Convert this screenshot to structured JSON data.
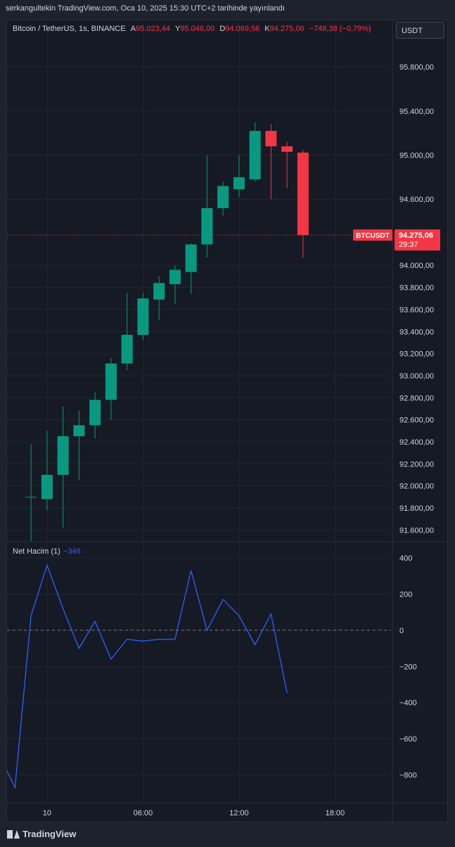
{
  "header": {
    "publish_line": "serkangultekin TradingView.com, Oca 10, 2025 15:30 UTC+2 tarihinde yayınlandı"
  },
  "legend": {
    "symbol": "Bitcoin / TetherUS, 1s, BINANCE",
    "open_label": "A",
    "open": "95.023,44",
    "high_label": "Y",
    "high": "95.046,00",
    "low_label": "D",
    "low": "94.069,56",
    "close_label": "K",
    "close": "94.275,06",
    "change": "−748,38 (−0,79%)"
  },
  "currency_button": "USDT",
  "price_tag": {
    "symbol": "BTCUSDT",
    "price": "94.275,06",
    "countdown": "29:37"
  },
  "indicator": {
    "name": "Net Hacim (1)",
    "value": "−346"
  },
  "footer": {
    "brand": "TradingView"
  },
  "colors": {
    "up": "#089981",
    "down": "#f23645",
    "line": "#2962ff",
    "bg": "#161a25",
    "grid": "#232632"
  },
  "chart_data": [
    {
      "type": "candlestick",
      "title": "Bitcoin / TetherUS, 1s, BINANCE",
      "grid": true,
      "ylim": [
        91500,
        96050
      ],
      "y_ticks": [
        91600,
        91800,
        92000,
        92200,
        92400,
        92600,
        92800,
        93000,
        93200,
        93400,
        93600,
        93800,
        94000,
        94600,
        95000,
        95400,
        95800
      ],
      "y_tick_labels": [
        "91.600,00",
        "91.800,00",
        "92.000,00",
        "92.200,00",
        "92.400,00",
        "92.600,00",
        "92.800,00",
        "93.000,00",
        "93.200,00",
        "93.400,00",
        "93.600,00",
        "93.800,00",
        "94.000,00",
        "94.600,00",
        "95.000,00",
        "95.400,00",
        "95.800,00"
      ],
      "x_ticks": [
        1,
        7,
        13,
        19
      ],
      "x_tick_labels": [
        "10",
        "06:00",
        "12:00",
        "18:00"
      ],
      "xlim": [
        -1.5,
        22.5
      ],
      "last_price": 94275.06,
      "candles": [
        {
          "o": 91900,
          "h": 92380,
          "l": 91500,
          "c": 91900
        },
        {
          "o": 91880,
          "h": 92500,
          "l": 91780,
          "c": 92100
        },
        {
          "o": 92100,
          "h": 92720,
          "l": 91620,
          "c": 92450
        },
        {
          "o": 92450,
          "h": 92680,
          "l": 92050,
          "c": 92550
        },
        {
          "o": 92550,
          "h": 92850,
          "l": 92430,
          "c": 92780
        },
        {
          "o": 92780,
          "h": 93160,
          "l": 92600,
          "c": 93110
        },
        {
          "o": 93110,
          "h": 93750,
          "l": 93050,
          "c": 93370
        },
        {
          "o": 93370,
          "h": 93750,
          "l": 93320,
          "c": 93700
        },
        {
          "o": 93690,
          "h": 93900,
          "l": 93500,
          "c": 93840
        },
        {
          "o": 93830,
          "h": 94000,
          "l": 93650,
          "c": 93960
        },
        {
          "o": 93940,
          "h": 94200,
          "l": 93740,
          "c": 94190
        },
        {
          "o": 94190,
          "h": 95000,
          "l": 94070,
          "c": 94520
        },
        {
          "o": 94520,
          "h": 94760,
          "l": 94450,
          "c": 94720
        },
        {
          "o": 94690,
          "h": 95000,
          "l": 94620,
          "c": 94800
        },
        {
          "o": 94780,
          "h": 95300,
          "l": 94760,
          "c": 95220
        },
        {
          "o": 95220,
          "h": 95280,
          "l": 94600,
          "c": 95080
        },
        {
          "o": 95080,
          "h": 95120,
          "l": 94700,
          "c": 95030
        },
        {
          "o": 95023.44,
          "h": 95046.0,
          "l": 94069.56,
          "c": 94275.06
        }
      ]
    },
    {
      "type": "line",
      "series": [
        {
          "name": "Net Hacim (1)",
          "values": [
            -780,
            -870,
            80,
            360,
            120,
            -100,
            50,
            -160,
            -50,
            -60,
            -50,
            -50,
            330,
            0,
            170,
            80,
            -80,
            90,
            -346
          ]
        }
      ],
      "x": [
        -1.5,
        -1,
        0,
        1,
        2,
        3,
        4,
        5,
        6,
        7,
        8,
        9,
        10,
        11,
        12,
        13,
        14,
        15,
        16
      ],
      "ylim": [
        -950,
        490
      ],
      "y_ticks": [
        400,
        200,
        0,
        -200,
        -400,
        -600,
        -800
      ],
      "y_tick_labels": [
        "400",
        "200",
        "0",
        "−200",
        "−400",
        "−600",
        "−800"
      ],
      "zero_line": true
    }
  ]
}
